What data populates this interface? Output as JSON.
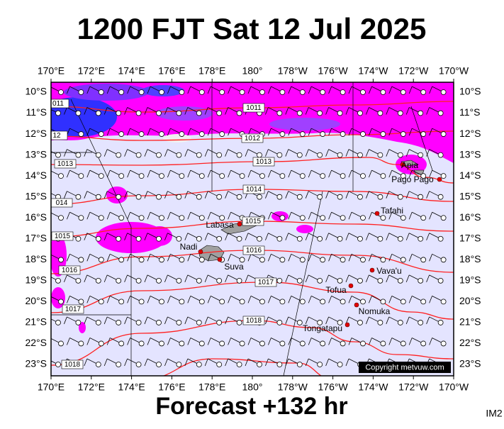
{
  "header": {
    "title": "1200 FJT Sat 12 Jul 2025"
  },
  "map": {
    "lon_labels": [
      "170°E",
      "172°E",
      "174°E",
      "176°E",
      "178°E",
      "180°",
      "178°W",
      "176°W",
      "174°W",
      "172°W",
      "170°W"
    ],
    "lat_labels": [
      "10°S",
      "11°S",
      "12°S",
      "13°S",
      "14°S",
      "15°S",
      "16°S",
      "17°S",
      "18°S",
      "19°S",
      "20°S",
      "21°S",
      "22°S",
      "23°S"
    ],
    "isobar_labels": [
      "011",
      "1011",
      "12",
      "1012",
      "1013",
      "1013",
      "014",
      "1014",
      "1015",
      "1015",
      "1016",
      "1016",
      "1017",
      "1017",
      "1018",
      "1018"
    ],
    "places": [
      {
        "name": "Labasa"
      },
      {
        "name": "Nadi"
      },
      {
        "name": "Suva"
      },
      {
        "name": "Apia"
      },
      {
        "name": "Pago Pago"
      },
      {
        "name": "Tafahi"
      },
      {
        "name": "Vava'u"
      },
      {
        "name": "Tofua"
      },
      {
        "name": "Nomuka"
      },
      {
        "name": "Tongatapu"
      }
    ],
    "copyright": "Copyright metvuw.com"
  },
  "footer": {
    "forecast": "Forecast +132 hr",
    "image_id": "IM2"
  }
}
